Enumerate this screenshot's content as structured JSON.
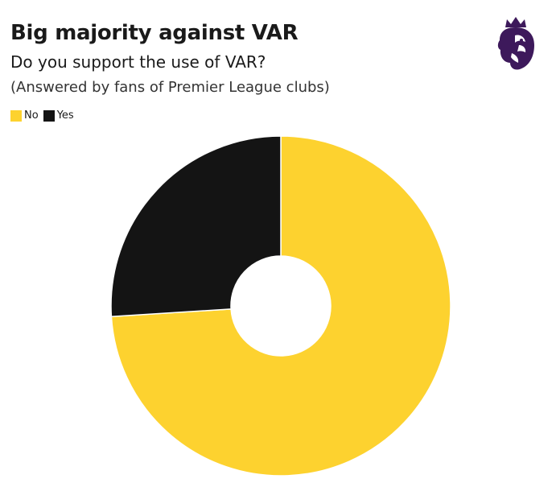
{
  "header": {
    "title": "Big majority against VAR",
    "subtitle": "Do you support the use of VAR?",
    "note": "(Answered by fans of Premier League clubs)"
  },
  "logo": {
    "icon": "premier-league-lion-icon",
    "color": "#3d195b"
  },
  "chart_data": {
    "type": "pie",
    "donut": true,
    "title": "Big majority against VAR",
    "subtitle": "Do you support the use of VAR?",
    "legend_position": "top-left",
    "categories": [
      "No",
      "Yes"
    ],
    "values": [
      74,
      26
    ],
    "colors": [
      "#fdd22f",
      "#141414"
    ]
  }
}
